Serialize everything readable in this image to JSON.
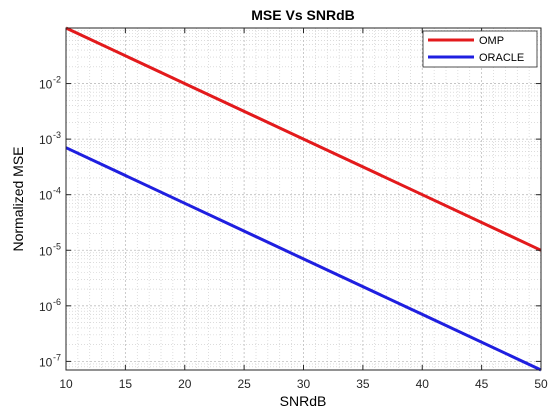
{
  "chart_data": {
    "type": "line",
    "title": "MSE Vs SNRdB",
    "xlabel": "SNRdB",
    "ylabel": "Normalized MSE",
    "xlim": [
      10,
      50
    ],
    "ylim": [
      7e-08,
      0.1
    ],
    "yscale": "log",
    "grid": true,
    "minor_grid": true,
    "legend_position": "top-right",
    "x_ticks": [
      "10",
      "15",
      "20",
      "25",
      "30",
      "35",
      "40",
      "45",
      "50"
    ],
    "y_ticks": [
      {
        "base": "10",
        "exp": "-7",
        "value": 1e-07
      },
      {
        "base": "10",
        "exp": "-6",
        "value": 1e-06
      },
      {
        "base": "10",
        "exp": "-5",
        "value": 1e-05
      },
      {
        "base": "10",
        "exp": "-4",
        "value": 0.0001
      },
      {
        "base": "10",
        "exp": "-3",
        "value": 0.001
      },
      {
        "base": "10",
        "exp": "-2",
        "value": 0.01
      }
    ],
    "series": [
      {
        "name": "OMP",
        "color": "#e31a1c",
        "x": [
          10,
          20,
          30,
          40,
          50
        ],
        "y": [
          0.1,
          0.01,
          0.001,
          0.0001,
          1e-05
        ]
      },
      {
        "name": "ORACLE",
        "color": "#1f1fe0",
        "x": [
          10,
          20,
          30,
          40,
          50
        ],
        "y": [
          0.0007,
          7e-05,
          7e-06,
          7e-07,
          7e-08
        ]
      }
    ]
  }
}
